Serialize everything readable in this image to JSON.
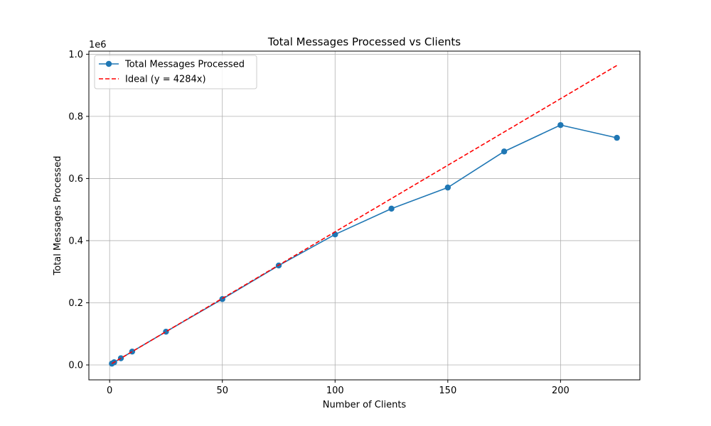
{
  "chart_data": {
    "type": "line",
    "title": "Total Messages Processed vs Clients",
    "xlabel": "Number of Clients",
    "ylabel": "Total Messages Processed",
    "y_offset_text": "1e6",
    "xlim": [
      -9.2,
      235.2
    ],
    "ylim": [
      -48000,
      1010000
    ],
    "x_ticks": [
      0,
      50,
      100,
      150,
      200
    ],
    "x_tick_labels": [
      "0",
      "50",
      "100",
      "150",
      "200"
    ],
    "y_ticks": [
      0,
      200000,
      400000,
      600000,
      800000,
      1000000
    ],
    "y_tick_labels": [
      "0.0",
      "0.2",
      "0.4",
      "0.6",
      "0.8",
      "1.0"
    ],
    "grid": true,
    "legend_position": "upper-left",
    "series": [
      {
        "name": "Total Messages Processed",
        "color": "#1f77b4",
        "style": "solid",
        "marker": "circle",
        "x": [
          1,
          2,
          5,
          10,
          25,
          50,
          75,
          100,
          125,
          150,
          175,
          200,
          225
        ],
        "y": [
          4300,
          8600,
          21500,
          43000,
          107000,
          212000,
          320000,
          420000,
          503000,
          571000,
          687000,
          772000,
          731000
        ]
      },
      {
        "name": "Ideal (y = 4284x)",
        "color": "#ff0000",
        "style": "dashed",
        "marker": "none",
        "x": [
          1,
          225
        ],
        "y": [
          4284,
          963900
        ]
      }
    ]
  }
}
